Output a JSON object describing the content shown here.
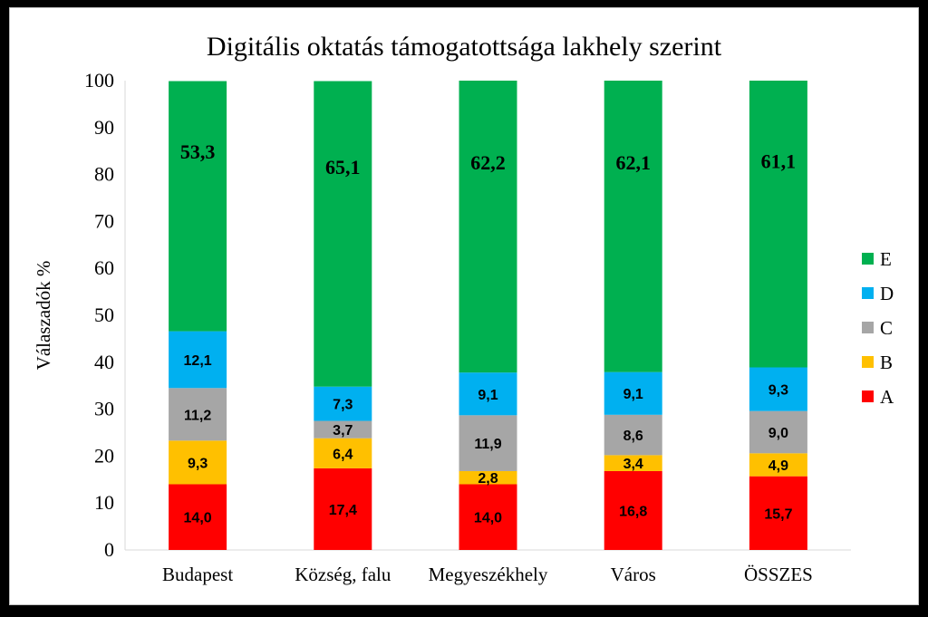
{
  "chart_data": {
    "type": "bar",
    "stacked": true,
    "title": "Digitális  oktatás támogatottsága lakhely  szerint",
    "ylabel": "Válaszadók %",
    "xlabel": "",
    "ylim": [
      0,
      100
    ],
    "yticks": [
      "0",
      "10",
      "20",
      "30",
      "40",
      "50",
      "60",
      "70",
      "80",
      "90",
      "100"
    ],
    "categories": [
      "Budapest",
      "Község, falu",
      "Megyeszékhely",
      "Város",
      "ÖSSZES"
    ],
    "grid": false,
    "legend_position": "right",
    "series": [
      {
        "name": "A",
        "color": "#ff0000",
        "values": [
          14.0,
          17.4,
          14.0,
          16.8,
          15.7
        ],
        "labels": [
          "14,0",
          "17,4",
          "14,0",
          "16,8",
          "15,7"
        ]
      },
      {
        "name": "B",
        "color": "#ffc000",
        "values": [
          9.3,
          6.4,
          2.8,
          3.4,
          4.9
        ],
        "labels": [
          "9,3",
          "6,4",
          "2,8",
          "3,4",
          "4,9"
        ]
      },
      {
        "name": "C",
        "color": "#a6a6a6",
        "values": [
          11.2,
          3.7,
          11.9,
          8.6,
          9.0
        ],
        "labels": [
          "11,2",
          "3,7",
          "11,9",
          "8,6",
          "9,0"
        ]
      },
      {
        "name": "D",
        "color": "#00b0f0",
        "values": [
          12.1,
          7.3,
          9.1,
          9.1,
          9.3
        ],
        "labels": [
          "12,1",
          "7,3",
          "9,1",
          "9,1",
          "9,3"
        ]
      },
      {
        "name": "E",
        "color": "#00b050",
        "values": [
          53.3,
          65.1,
          62.2,
          62.1,
          61.1
        ],
        "labels": [
          "53,3",
          "65,1",
          "62,2",
          "62,1",
          "61,1"
        ]
      }
    ]
  }
}
